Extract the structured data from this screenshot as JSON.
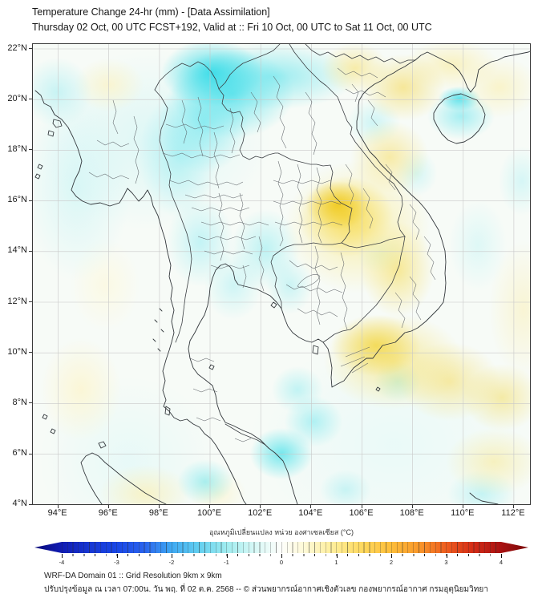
{
  "header": {
    "title": "Temperature Change 24-hr (mm) - [Data Assimilation]",
    "subtitle": "Thursday 02 Oct, 00 UTC FCST+192, Valid at :: Fri 10 Oct, 00 UTC to Sat 11 Oct, 00 UTC"
  },
  "map": {
    "y_axis": {
      "labels": [
        "22°N",
        "20°N",
        "18°N",
        "16°N",
        "14°N",
        "12°N",
        "10°N",
        "8°N",
        "6°N",
        "4°N"
      ]
    },
    "x_axis": {
      "labels": [
        "94°E",
        "96°E",
        "98°E",
        "100°E",
        "102°E",
        "104°E",
        "106°E",
        "108°E",
        "110°E",
        "112°E"
      ]
    }
  },
  "colorbar": {
    "label": "อุณหภูมิเปลี่ยนแปลง หน่วย องศาเซลเซียส (°C)",
    "ticks": [
      "-4",
      "-3",
      "-2",
      "-1",
      "0",
      "1",
      "2",
      "3",
      "4"
    ],
    "min": -4,
    "max": 4
  },
  "footer": {
    "line1": "WRF-DA Domain 01 :: Grid Resolution 9km x 9km",
    "line2": "ปรับปรุงข้อมูล ณ เวลา 07:00น. วัน พฤ. ที่ 02 ต.ค. 2568 -- © ส่วนพยากรณ์อากาศเชิงตัวเลข กองพยากรณ์อากาศ กรมอุตุนิยมวิทยา"
  },
  "palette": {
    "cold_strong": "#1946e6",
    "cool_cyan": "#3addE8",
    "neutral": "#fefefb",
    "warm_yellow": "#f0cb23",
    "hot_red": "#a81111",
    "gridline": "#c8c8c8",
    "boundary": "#3c4044"
  },
  "chart_data": {
    "type": "heatmap",
    "title": "Temperature Change 24-hr (mm) - [Data Assimilation]",
    "x_range_deg_east": [
      93,
      112.7
    ],
    "y_range_deg_north": [
      4,
      22.2
    ],
    "x_ticks": [
      94,
      96,
      98,
      100,
      102,
      104,
      106,
      108,
      110,
      112
    ],
    "y_ticks": [
      22,
      20,
      18,
      16,
      14,
      12,
      10,
      8,
      6,
      4
    ],
    "colorbar_range_celsius": [
      -4,
      4
    ],
    "colorbar_tick_step": 1,
    "notable_anomalies": [
      {
        "lon": 104.8,
        "lat": 16.0,
        "approx_value": 1.5,
        "sign": "warm"
      },
      {
        "lon": 106.5,
        "lat": 10.5,
        "approx_value": 1.0,
        "sign": "warm"
      },
      {
        "lon": 105.5,
        "lat": 21.5,
        "approx_value": 0.8,
        "sign": "warm"
      },
      {
        "lon": 99.0,
        "lat": 21.0,
        "approx_value": -1.0,
        "sign": "cool"
      },
      {
        "lon": 109.8,
        "lat": 20.0,
        "approx_value": -0.8,
        "sign": "cool"
      },
      {
        "lon": 101.5,
        "lat": 6.0,
        "approx_value": -0.8,
        "sign": "cool"
      }
    ]
  }
}
